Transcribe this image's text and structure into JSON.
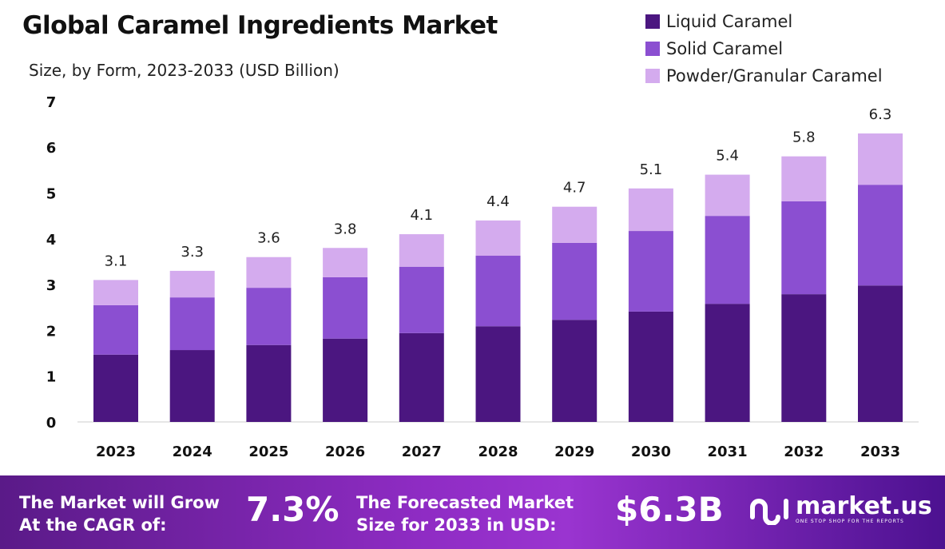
{
  "chart_data": {
    "type": "bar",
    "stacked": true,
    "title": "Global Caramel Ingredients Market",
    "subtitle": "Size, by Form, 2023-2033 (USD Billion)",
    "xlabel": "",
    "ylabel": "",
    "ylim": [
      0,
      7
    ],
    "yticks": [
      0,
      1,
      2,
      3,
      4,
      5,
      6,
      7
    ],
    "grid": false,
    "legend_position": "top-right",
    "categories": [
      "2023",
      "2024",
      "2025",
      "2026",
      "2027",
      "2028",
      "2029",
      "2030",
      "2031",
      "2032",
      "2033"
    ],
    "series": [
      {
        "name": "Liquid Caramel",
        "color": "#4b1680",
        "values": [
          1.47,
          1.57,
          1.68,
          1.82,
          1.94,
          2.09,
          2.23,
          2.41,
          2.58,
          2.79,
          2.98
        ]
      },
      {
        "name": "Solid Caramel",
        "color": "#8b4fd1",
        "values": [
          1.08,
          1.15,
          1.25,
          1.34,
          1.45,
          1.54,
          1.68,
          1.76,
          1.92,
          2.03,
          2.2
        ]
      },
      {
        "name": "Powder/Granular Caramel",
        "color": "#d4abee",
        "values": [
          0.55,
          0.58,
          0.67,
          0.64,
          0.71,
          0.77,
          0.79,
          0.93,
          0.9,
          0.98,
          1.12
        ]
      }
    ],
    "totals": [
      "3.1",
      "3.3",
      "3.6",
      "3.8",
      "4.1",
      "4.4",
      "4.7",
      "5.1",
      "5.4",
      "5.8",
      "6.3"
    ]
  },
  "footer": {
    "cagr_label_1": "The Market will Grow",
    "cagr_label_2": "At the CAGR of:",
    "cagr_value": "7.3%",
    "forecast_label_1": "The Forecasted Market",
    "forecast_label_2": "Size for 2033 in USD:",
    "forecast_value": "$6.3B",
    "logo_text": "market.us",
    "logo_tagline": "ONE STOP SHOP FOR THE REPORTS"
  }
}
